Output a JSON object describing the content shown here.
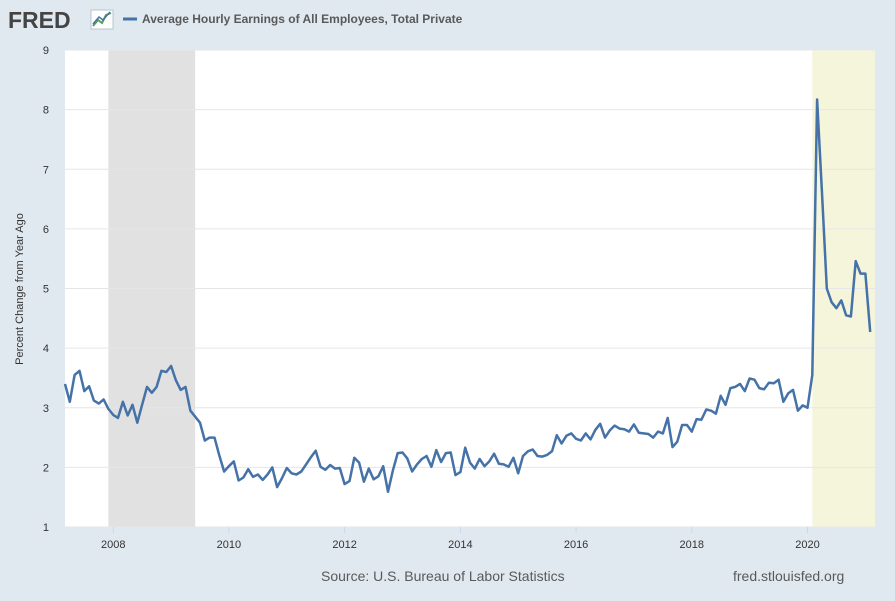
{
  "logo": {
    "text": "FRED"
  },
  "footer": {
    "source": "Source: U.S. Bureau of Labor Statistics",
    "site": "fred.stlouisfed.org"
  },
  "colors": {
    "line": "#4572a7",
    "recession": "#e1e1e1",
    "forecast_band": "#f5f5dc",
    "background": "#e1e9f0"
  },
  "chart_data": {
    "type": "line",
    "title": "",
    "xlabel": "",
    "ylabel": "Percent Change from Year Ago",
    "ylim": [
      1,
      9
    ],
    "xlim": [
      "2007-03",
      "2021-03"
    ],
    "yticks": [
      1,
      2,
      3,
      4,
      5,
      6,
      7,
      8,
      9
    ],
    "xticks": [
      "2008",
      "2010",
      "2012",
      "2014",
      "2016",
      "2018",
      "2020"
    ],
    "grid": true,
    "legend": "top-left",
    "shaded_periods": [
      {
        "start": "2007-12",
        "end": "2009-06",
        "color": "#e1e1e1"
      },
      {
        "start": "2020-02",
        "end": "2021-03",
        "color": "#f5f5dc"
      }
    ],
    "series": [
      {
        "name": "Average Hourly Earnings of All Employees, Total Private",
        "points": [
          [
            "2007-03",
            3.4
          ],
          [
            "2007-04",
            3.1
          ],
          [
            "2007-05",
            3.55
          ],
          [
            "2007-06",
            3.62
          ],
          [
            "2007-07",
            3.28
          ],
          [
            "2007-08",
            3.36
          ],
          [
            "2007-09",
            3.12
          ],
          [
            "2007-10",
            3.07
          ],
          [
            "2007-11",
            3.14
          ],
          [
            "2007-12",
            2.98
          ],
          [
            "2008-01",
            2.88
          ],
          [
            "2008-02",
            2.83
          ],
          [
            "2008-03",
            3.1
          ],
          [
            "2008-04",
            2.87
          ],
          [
            "2008-05",
            3.05
          ],
          [
            "2008-06",
            2.75
          ],
          [
            "2008-07",
            3.05
          ],
          [
            "2008-08",
            3.35
          ],
          [
            "2008-09",
            3.25
          ],
          [
            "2008-10",
            3.35
          ],
          [
            "2008-11",
            3.62
          ],
          [
            "2008-12",
            3.6
          ],
          [
            "2009-01",
            3.7
          ],
          [
            "2009-02",
            3.46
          ],
          [
            "2009-03",
            3.3
          ],
          [
            "2009-04",
            3.35
          ],
          [
            "2009-05",
            2.95
          ],
          [
            "2009-06",
            2.85
          ],
          [
            "2009-07",
            2.75
          ],
          [
            "2009-08",
            2.45
          ],
          [
            "2009-09",
            2.5
          ],
          [
            "2009-10",
            2.5
          ],
          [
            "2009-11",
            2.2
          ],
          [
            "2009-12",
            1.93
          ],
          [
            "2010-01",
            2.02
          ],
          [
            "2010-02",
            2.1
          ],
          [
            "2010-03",
            1.78
          ],
          [
            "2010-04",
            1.83
          ],
          [
            "2010-05",
            1.97
          ],
          [
            "2010-06",
            1.84
          ],
          [
            "2010-07",
            1.88
          ],
          [
            "2010-08",
            1.79
          ],
          [
            "2010-09",
            1.88
          ],
          [
            "2010-10",
            2.0
          ],
          [
            "2010-11",
            1.67
          ],
          [
            "2010-12",
            1.82
          ],
          [
            "2011-01",
            1.99
          ],
          [
            "2011-02",
            1.9
          ],
          [
            "2011-03",
            1.88
          ],
          [
            "2011-04",
            1.93
          ],
          [
            "2011-05",
            2.05
          ],
          [
            "2011-06",
            2.17
          ],
          [
            "2011-07",
            2.28
          ],
          [
            "2011-08",
            2.01
          ],
          [
            "2011-09",
            1.96
          ],
          [
            "2011-10",
            2.04
          ],
          [
            "2011-11",
            1.98
          ],
          [
            "2011-12",
            1.99
          ],
          [
            "2012-01",
            1.72
          ],
          [
            "2012-02",
            1.77
          ],
          [
            "2012-03",
            2.16
          ],
          [
            "2012-04",
            2.08
          ],
          [
            "2012-05",
            1.76
          ],
          [
            "2012-06",
            1.98
          ],
          [
            "2012-07",
            1.8
          ],
          [
            "2012-08",
            1.85
          ],
          [
            "2012-09",
            2.02
          ],
          [
            "2012-10",
            1.59
          ],
          [
            "2012-11",
            1.95
          ],
          [
            "2012-12",
            2.24
          ],
          [
            "2013-01",
            2.25
          ],
          [
            "2013-02",
            2.15
          ],
          [
            "2013-03",
            1.93
          ],
          [
            "2013-04",
            2.05
          ],
          [
            "2013-05",
            2.14
          ],
          [
            "2013-06",
            2.19
          ],
          [
            "2013-07",
            2.01
          ],
          [
            "2013-08",
            2.29
          ],
          [
            "2013-09",
            2.09
          ],
          [
            "2013-10",
            2.24
          ],
          [
            "2013-11",
            2.25
          ],
          [
            "2013-12",
            1.87
          ],
          [
            "2014-01",
            1.92
          ],
          [
            "2014-02",
            2.33
          ],
          [
            "2014-03",
            2.08
          ],
          [
            "2014-04",
            1.98
          ],
          [
            "2014-05",
            2.14
          ],
          [
            "2014-06",
            2.02
          ],
          [
            "2014-07",
            2.1
          ],
          [
            "2014-08",
            2.23
          ],
          [
            "2014-09",
            2.06
          ],
          [
            "2014-10",
            2.05
          ],
          [
            "2014-11",
            2.01
          ],
          [
            "2014-12",
            2.16
          ],
          [
            "2015-01",
            1.9
          ],
          [
            "2015-02",
            2.19
          ],
          [
            "2015-03",
            2.27
          ],
          [
            "2015-04",
            2.3
          ],
          [
            "2015-05",
            2.19
          ],
          [
            "2015-06",
            2.18
          ],
          [
            "2015-07",
            2.21
          ],
          [
            "2015-08",
            2.27
          ],
          [
            "2015-09",
            2.54
          ],
          [
            "2015-10",
            2.4
          ],
          [
            "2015-11",
            2.53
          ],
          [
            "2015-12",
            2.57
          ],
          [
            "2016-01",
            2.48
          ],
          [
            "2016-02",
            2.45
          ],
          [
            "2016-03",
            2.57
          ],
          [
            "2016-04",
            2.47
          ],
          [
            "2016-05",
            2.63
          ],
          [
            "2016-06",
            2.73
          ],
          [
            "2016-07",
            2.5
          ],
          [
            "2016-08",
            2.62
          ],
          [
            "2016-09",
            2.7
          ],
          [
            "2016-10",
            2.65
          ],
          [
            "2016-11",
            2.64
          ],
          [
            "2016-12",
            2.6
          ],
          [
            "2017-01",
            2.72
          ],
          [
            "2017-02",
            2.58
          ],
          [
            "2017-03",
            2.57
          ],
          [
            "2017-04",
            2.56
          ],
          [
            "2017-05",
            2.5
          ],
          [
            "2017-06",
            2.6
          ],
          [
            "2017-07",
            2.57
          ],
          [
            "2017-08",
            2.83
          ],
          [
            "2017-09",
            2.34
          ],
          [
            "2017-10",
            2.43
          ],
          [
            "2017-11",
            2.71
          ],
          [
            "2017-12",
            2.71
          ],
          [
            "2018-01",
            2.6
          ],
          [
            "2018-02",
            2.81
          ],
          [
            "2018-03",
            2.8
          ],
          [
            "2018-04",
            2.97
          ],
          [
            "2018-05",
            2.95
          ],
          [
            "2018-06",
            2.9
          ],
          [
            "2018-07",
            3.2
          ],
          [
            "2018-08",
            3.05
          ],
          [
            "2018-09",
            3.33
          ],
          [
            "2018-10",
            3.35
          ],
          [
            "2018-11",
            3.4
          ],
          [
            "2018-12",
            3.28
          ],
          [
            "2019-01",
            3.49
          ],
          [
            "2019-02",
            3.47
          ],
          [
            "2019-03",
            3.33
          ],
          [
            "2019-04",
            3.31
          ],
          [
            "2019-05",
            3.42
          ],
          [
            "2019-06",
            3.41
          ],
          [
            "2019-07",
            3.47
          ],
          [
            "2019-08",
            3.1
          ],
          [
            "2019-09",
            3.24
          ],
          [
            "2019-10",
            3.3
          ],
          [
            "2019-11",
            2.95
          ],
          [
            "2019-12",
            3.04
          ],
          [
            "2020-01",
            3.0
          ],
          [
            "2020-02",
            3.55
          ],
          [
            "2020-03",
            8.17
          ],
          [
            "2020-04",
            6.6
          ],
          [
            "2020-05",
            5.0
          ],
          [
            "2020-06",
            4.77
          ],
          [
            "2020-07",
            4.67
          ],
          [
            "2020-08",
            4.8
          ],
          [
            "2020-09",
            4.55
          ],
          [
            "2020-10",
            4.53
          ],
          [
            "2020-11",
            5.46
          ],
          [
            "2020-12",
            5.25
          ],
          [
            "2021-01",
            5.25
          ],
          [
            "2021-02",
            4.27
          ]
        ]
      }
    ]
  }
}
